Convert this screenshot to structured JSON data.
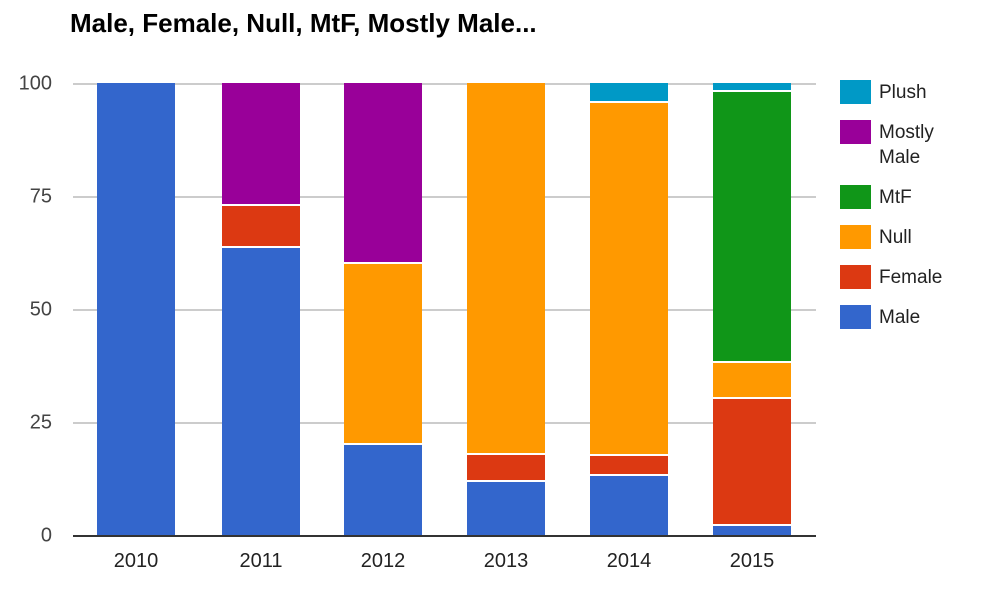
{
  "chart_data": {
    "type": "bar",
    "stacked": true,
    "stack_unit": "percent",
    "title": "Male, Female, Null, MtF, Mostly Male...",
    "categories": [
      "2010",
      "2011",
      "2012",
      "2013",
      "2014",
      "2015"
    ],
    "series": [
      {
        "name": "Male",
        "color": "#3366cc",
        "values": [
          100,
          63.6,
          20,
          11.8,
          13,
          2
        ]
      },
      {
        "name": "Female",
        "color": "#dc3912",
        "values": [
          0,
          9.1,
          0,
          5.9,
          4.5,
          28
        ]
      },
      {
        "name": "Null",
        "color": "#ff9900",
        "values": [
          0,
          0,
          40,
          82.3,
          78,
          8
        ]
      },
      {
        "name": "MtF",
        "color": "#109618",
        "values": [
          0,
          0,
          0,
          0,
          0,
          60
        ]
      },
      {
        "name": "Mostly Male",
        "color": "#990099",
        "values": [
          0,
          27.3,
          40,
          0,
          0,
          0
        ]
      },
      {
        "name": "Plush",
        "color": "#0099c6",
        "values": [
          0,
          0,
          0,
          0,
          4.5,
          2
        ]
      }
    ],
    "y_ticks": [
      0,
      25,
      50,
      75,
      100
    ],
    "ylim": [
      0,
      100
    ],
    "grid": true,
    "legend_position": "right",
    "legend_order": [
      "Plush",
      "Mostly Male",
      "MtF",
      "Null",
      "Female",
      "Male"
    ]
  }
}
